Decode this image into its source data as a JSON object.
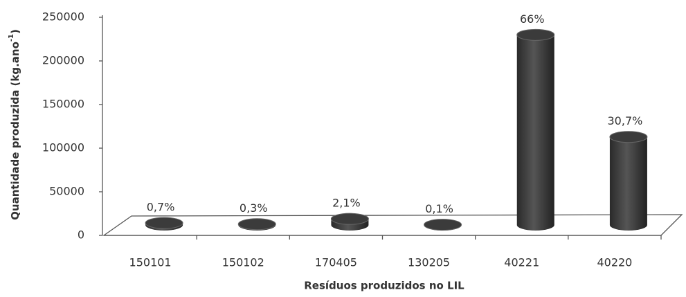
{
  "chart_data": {
    "type": "bar3d",
    "y_label": {
      "text": "Quantidade produzida (kg.ano",
      "superscript": "-1",
      "suffix": ")"
    },
    "x_label": "Resíduos produzidos no LIL",
    "categories": [
      "150101",
      "150102",
      "170405",
      "130205",
      "40221",
      "40220"
    ],
    "values": [
      2300,
      1000,
      7000,
      330,
      218000,
      101000
    ],
    "annotations": [
      "0,7%",
      "0,3%",
      "2,1%",
      "0,1%",
      "66%",
      "30,7%"
    ],
    "color": "#3b3b3b",
    "ylim": [
      0,
      250000
    ],
    "yticks": [
      0,
      50000,
      100000,
      150000,
      200000,
      250000
    ]
  }
}
